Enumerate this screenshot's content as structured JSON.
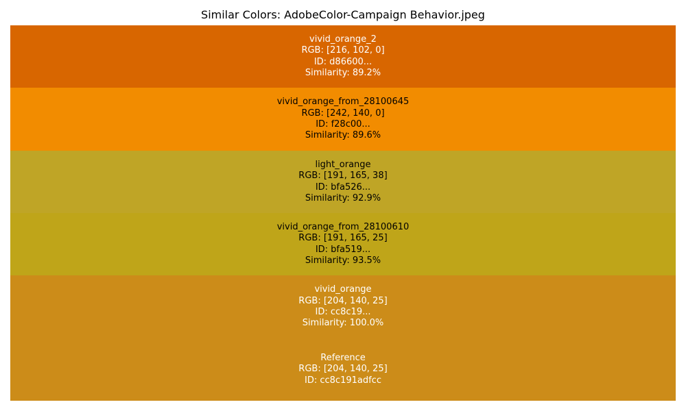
{
  "chart_data": {
    "type": "table",
    "title": "Similar Colors: AdobeColor-Campaign Behavior.jpeg",
    "rows": [
      {
        "name": "vivid_orange_2",
        "rgb_text": "RGB: [216, 102, 0]",
        "id_text": "ID: d86600...",
        "similarity_text": "Similarity: 89.2%",
        "color": "#d86600",
        "text_color": "#ffffff",
        "similarity": 89.2
      },
      {
        "name": "vivid_orange_from_28100645",
        "rgb_text": "RGB: [242, 140, 0]",
        "id_text": "ID: f28c00...",
        "similarity_text": "Similarity: 89.6%",
        "color": "#f28c00",
        "text_color": "#000000",
        "similarity": 89.6
      },
      {
        "name": "light_orange",
        "rgb_text": "RGB: [191, 165, 38]",
        "id_text": "ID: bfa526...",
        "similarity_text": "Similarity: 92.9%",
        "color": "#bfa526",
        "text_color": "#000000",
        "similarity": 92.9
      },
      {
        "name": "vivid_orange_from_28100610",
        "rgb_text": "RGB: [191, 165, 25]",
        "id_text": "ID: bfa519...",
        "similarity_text": "Similarity: 93.5%",
        "color": "#bfa519",
        "text_color": "#000000",
        "similarity": 93.5
      },
      {
        "name": "vivid_orange",
        "rgb_text": "RGB: [204, 140, 25]",
        "id_text": "ID: cc8c19...",
        "similarity_text": "Similarity: 100.0%",
        "color": "#cc8c19",
        "text_color": "#ffffff",
        "similarity": 100.0
      },
      {
        "name": "Reference",
        "rgb_text": "RGB: [204, 140, 25]",
        "id_text": "ID: cc8c191adfcc",
        "similarity_text": "",
        "color": "#cc8c19",
        "text_color": "#ffffff",
        "similarity": null
      }
    ]
  }
}
